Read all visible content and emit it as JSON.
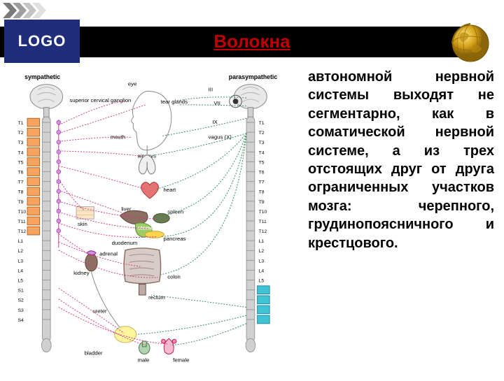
{
  "header": {
    "logo_text": "LOGO",
    "title_text": "Волокна",
    "title_color": "#c00000",
    "logo_bg": "#1f2d7a"
  },
  "arrows": {
    "colors": [
      "#7a7a7a",
      "#9e9e9e",
      "#c4c4c4",
      "#e0e0e0"
    ]
  },
  "body": {
    "paragraph": "автономной нервной системы выходят не сегментарно, как в соматической нервной системе, а из трех отстоящих друг от друга ограниченных участков мозга: черепного, грудинопоясничного и крестцового.",
    "font_size": 20,
    "font_weight": "bold"
  },
  "diagram": {
    "left_title": "sympathetic",
    "right_title": "parasympathetic",
    "cranial_nerves": [
      "III",
      "VII",
      "IX",
      "vagus (X)"
    ],
    "spine_segments": [
      "T1",
      "T2",
      "T3",
      "T4",
      "T5",
      "T6",
      "T7",
      "T8",
      "T9",
      "T10",
      "T11",
      "T12",
      "L1",
      "L2",
      "L3",
      "L4",
      "L5",
      "S1",
      "S2",
      "S3",
      "S4"
    ],
    "organs": [
      "eye",
      "tear glands",
      "mouth",
      "airways",
      "heart",
      "liver",
      "spleen",
      "stomach",
      "pancreas",
      "duodenum",
      "kidney",
      "adrenal",
      "colon",
      "rectum",
      "ureter",
      "bladder",
      "male",
      "female",
      "superior cervical ganglion",
      "skin"
    ],
    "colors": {
      "sympathetic_line": "#d63384",
      "parasympathetic_line": "#2e8b57",
      "spine_fill": "#d0d0d0",
      "t_segment_fill": "#f4a460",
      "s_segment_fill": "#40c4d4",
      "brain_fill": "#e8e8e8",
      "organ_stroke": "#555555"
    }
  }
}
